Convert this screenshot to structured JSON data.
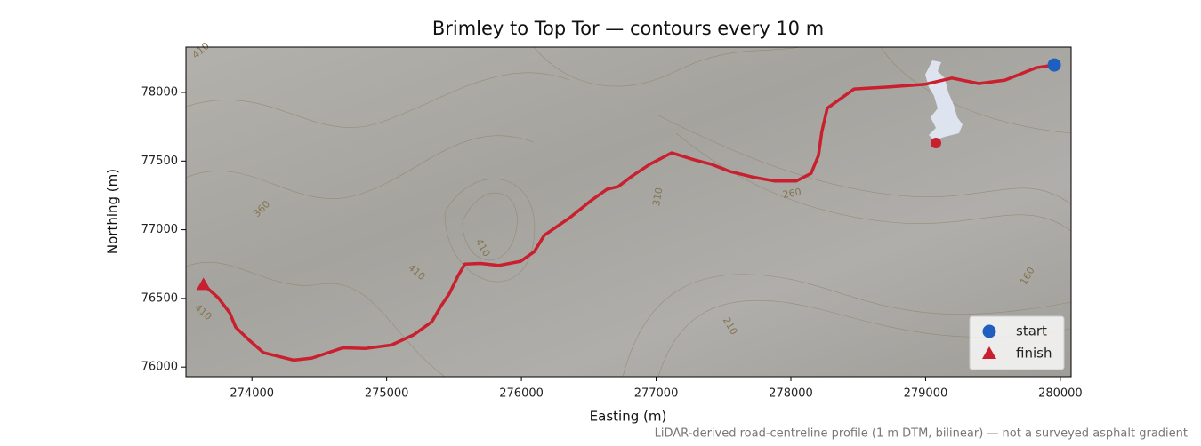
{
  "chart_data": {
    "type": "line",
    "title": "Brimley to Top Tor — contours every 10 m",
    "xlabel": "Easting (m)",
    "ylabel": "Northing (m)",
    "note": "LiDAR-derived road-centreline profile (1 m DTM, bilinear) — not a surveyed asphalt gradient",
    "xlim": [
      273510,
      280080
    ],
    "ylim": [
      75930,
      78330
    ],
    "xticks": [
      274000,
      275000,
      276000,
      277000,
      278000,
      279000,
      280000
    ],
    "yticks": [
      76000,
      76500,
      77000,
      77500,
      78000
    ],
    "route": {
      "color": "#c8202f",
      "x": [
        279955,
        279820,
        279590,
        279395,
        279195,
        279000,
        278735,
        278470,
        278270,
        278230,
        278205,
        278150,
        278040,
        277875,
        277710,
        277545,
        277415,
        277280,
        277115,
        276950,
        276820,
        276720,
        276635,
        276520,
        276355,
        276170,
        276095,
        275995,
        275830,
        275695,
        275580,
        275530,
        275465,
        275400,
        275335,
        275200,
        275035,
        274840,
        274675,
        274445,
        274310,
        274085,
        273980,
        273880,
        273835,
        273750,
        273640
      ],
      "y": [
        78200,
        78180,
        78090,
        78065,
        78105,
        78060,
        78040,
        78025,
        77885,
        77715,
        77540,
        77410,
        77355,
        77355,
        77385,
        77425,
        77475,
        77510,
        77560,
        77475,
        77390,
        77315,
        77295,
        77215,
        77085,
        76960,
        76840,
        76770,
        76740,
        76755,
        76750,
        76665,
        76535,
        76440,
        76330,
        76235,
        76160,
        76135,
        76140,
        76065,
        76050,
        76105,
        76195,
        76290,
        76395,
        76505,
        76600
      ]
    },
    "markers": [
      {
        "name": "start",
        "marker": "circle",
        "color": "#1f5fbf",
        "x": 279955,
        "y": 78200
      },
      {
        "name": "finish",
        "marker": "triangle",
        "color": "#c8202f",
        "x": 273640,
        "y": 76600
      }
    ],
    "legend": "lower right",
    "contour_labels": [
      "410",
      "360",
      "410",
      "410",
      "410",
      "310",
      "260",
      "160",
      "210"
    ]
  }
}
